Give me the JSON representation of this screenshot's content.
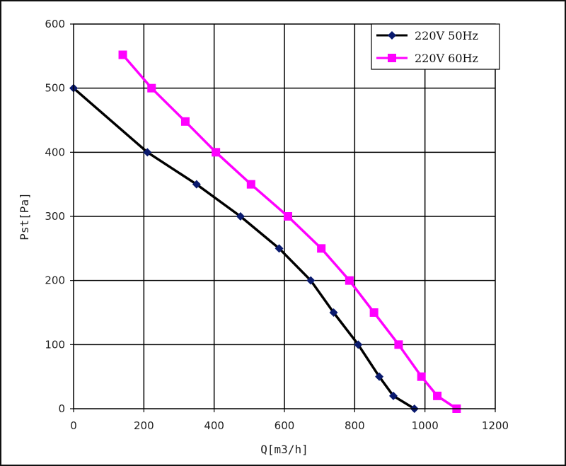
{
  "chart_data": {
    "type": "line",
    "title": "",
    "xlabel": "Q[m3/h]",
    "ylabel": "Pst[Pa]",
    "xlim": [
      0,
      1200
    ],
    "ylim": [
      0,
      600
    ],
    "x_ticks": [
      0,
      200,
      400,
      600,
      800,
      1000,
      1200
    ],
    "y_ticks": [
      0,
      100,
      200,
      300,
      400,
      500,
      600
    ],
    "grid": true,
    "legend_position": "top-right",
    "series": [
      {
        "name": "220V 50Hz",
        "color": "#000000",
        "marker": "diamond",
        "marker_color": "#0a1a6e",
        "points": [
          [
            0,
            500
          ],
          [
            210,
            400
          ],
          [
            350,
            350
          ],
          [
            475,
            300
          ],
          [
            585,
            250
          ],
          [
            675,
            200
          ],
          [
            740,
            150
          ],
          [
            810,
            100
          ],
          [
            870,
            50
          ],
          [
            910,
            20
          ],
          [
            970,
            0
          ]
        ]
      },
      {
        "name": "220V 60Hz",
        "color": "#ff00ff",
        "marker": "square",
        "marker_color": "#ff00ff",
        "points": [
          [
            140,
            552
          ],
          [
            222,
            500
          ],
          [
            318,
            448
          ],
          [
            405,
            400
          ],
          [
            505,
            350
          ],
          [
            610,
            300
          ],
          [
            705,
            250
          ],
          [
            785,
            200
          ],
          [
            855,
            150
          ],
          [
            925,
            100
          ],
          [
            990,
            50
          ],
          [
            1035,
            20
          ],
          [
            1090,
            0
          ]
        ]
      }
    ]
  }
}
